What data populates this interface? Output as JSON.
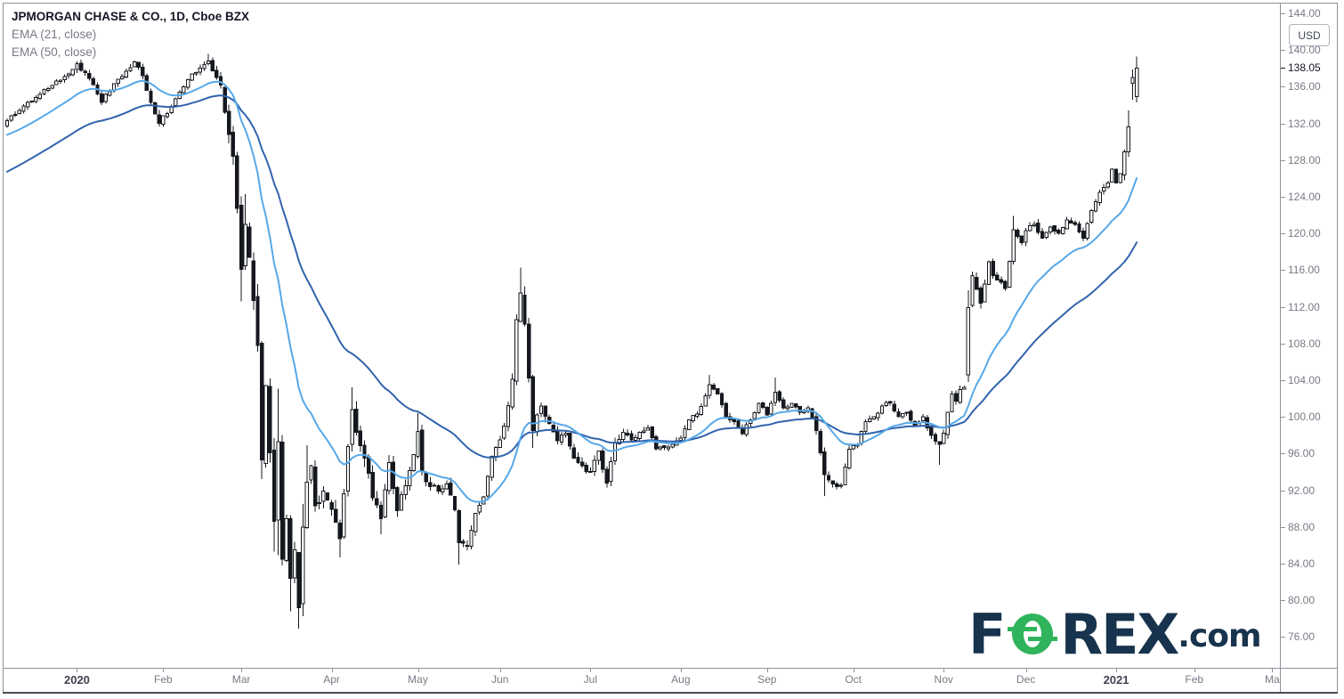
{
  "legend": {
    "title": "JPMORGAN CHASE & CO., 1D, Cboe BZX",
    "indicators": [
      "EMA (21, close)",
      "EMA (50, close)"
    ]
  },
  "price_axis": {
    "currency": "USD",
    "tick_labels": [
      "144.00",
      "140.00",
      "136.00",
      "132.00",
      "128.00",
      "124.00",
      "120.00",
      "116.00",
      "112.00",
      "108.00",
      "104.00",
      "100.00",
      "96.00",
      "92.00",
      "88.00",
      "84.00",
      "80.00",
      "76.00"
    ],
    "last_price": "138.05",
    "text_color": "#787b86",
    "last_price_color": "#131722"
  },
  "time_axis": {
    "labels": [
      {
        "text": "2020",
        "day": 17,
        "year": true
      },
      {
        "text": "Feb",
        "day": 38,
        "year": false
      },
      {
        "text": "Mar",
        "day": 57,
        "year": false
      },
      {
        "text": "Apr",
        "day": 79,
        "year": false
      },
      {
        "text": "May",
        "day": 100,
        "year": false
      },
      {
        "text": "Jun",
        "day": 120,
        "year": false
      },
      {
        "text": "Jul",
        "day": 142,
        "year": false
      },
      {
        "text": "Aug",
        "day": 164,
        "year": false
      },
      {
        "text": "Sep",
        "day": 185,
        "year": false
      },
      {
        "text": "Oct",
        "day": 206,
        "year": false
      },
      {
        "text": "Nov",
        "day": 228,
        "year": false
      },
      {
        "text": "Dec",
        "day": 248,
        "year": false
      },
      {
        "text": "2021",
        "day": 270,
        "year": true
      },
      {
        "text": "Feb",
        "day": 289,
        "year": false
      },
      {
        "text": "Ma",
        "day": 308,
        "year": false
      }
    ]
  },
  "watermark": {
    "part_f": "F",
    "part_rex": "REX",
    "part_suffix": ".com",
    "navy": "#17334d",
    "green": "#2fb45c"
  },
  "chart_data": {
    "type": "candlestick",
    "title": "JPMORGAN CHASE & CO., 1D, Cboe BZX",
    "symbol_name": "JPMORGAN CHASE & CO.",
    "interval": "1D",
    "exchange": "Cboe BZX",
    "grid": false,
    "legend_position": "top-left",
    "price_axis_range_visible": [
      72.6,
      145.2
    ],
    "price_tick_step": 4,
    "last_close": 138.05,
    "candle_style": {
      "up_fill": "#ffffff",
      "down_fill": "#15181e",
      "border": "#15181e"
    },
    "emas": [
      {
        "length": 21,
        "source": "close",
        "color": "#56a8e8",
        "seed": 130.6
      },
      {
        "length": 50,
        "source": "close",
        "color": "#3164ad",
        "seed": 126.5
      }
    ],
    "anchor_fields": [
      "day_index",
      "close",
      "volatility",
      "high_override",
      "low_override",
      "open_override"
    ],
    "anchors": [
      [
        0,
        132.3,
        0.9
      ],
      [
        4,
        133.9,
        0.8
      ],
      [
        9,
        135.7,
        0.8
      ],
      [
        14,
        137.1,
        0.8
      ],
      [
        17,
        138.5,
        0.9
      ],
      [
        20,
        136.9,
        0.9
      ],
      [
        23,
        134.3,
        1.0
      ],
      [
        27,
        136.8,
        0.9
      ],
      [
        31,
        138.7,
        0.9
      ],
      [
        33,
        137.2,
        0.9
      ],
      [
        35,
        134.3,
        1.0
      ],
      [
        37,
        132.0,
        1.2
      ],
      [
        39,
        133.1,
        1.0
      ],
      [
        41,
        134.7,
        0.9
      ],
      [
        43,
        136.0,
        0.9
      ],
      [
        45,
        137.4,
        0.9
      ],
      [
        49,
        138.8,
        0.9,
        139.6,
        null,
        null
      ],
      [
        52,
        136.2,
        1.2
      ],
      [
        53,
        133.2,
        2.0
      ],
      [
        55,
        128.4,
        2.4
      ],
      [
        57,
        116.1,
        3.2,
        null,
        112.6,
        null
      ],
      [
        58,
        121.0,
        3.0,
        124.3,
        null,
        null
      ],
      [
        60,
        112.7,
        3.2
      ],
      [
        61,
        107.8,
        3.4
      ],
      [
        62,
        95.3,
        3.8,
        null,
        93.2,
        null
      ],
      [
        63,
        103.4,
        3.6
      ],
      [
        64,
        96.1,
        3.4
      ],
      [
        65,
        88.6,
        3.6,
        null,
        85.3,
        null
      ],
      [
        66,
        97.3,
        3.8,
        103.1,
        84.9,
        null
      ],
      [
        67,
        84.5,
        3.6
      ],
      [
        68,
        88.9,
        3.2
      ],
      [
        69,
        82.4,
        3.2,
        null,
        78.8,
        null
      ],
      [
        70,
        85.5,
        3.0
      ],
      [
        71,
        79.2,
        3.0,
        null,
        76.9,
        null
      ],
      [
        72,
        88.0,
        3.4,
        90.5,
        null,
        null
      ],
      [
        73,
        92.9,
        3.0,
        96.9,
        null,
        null
      ],
      [
        74,
        94.7,
        2.6
      ],
      [
        75,
        90.3,
        2.4
      ],
      [
        77,
        91.9,
        2.2
      ],
      [
        79,
        89.9,
        2.2
      ],
      [
        81,
        86.7,
        2.4,
        null,
        84.7,
        null
      ],
      [
        82,
        91.6,
        2.4
      ],
      [
        84,
        100.8,
        2.6,
        103.2,
        null,
        null
      ],
      [
        85,
        98.3,
        2.4
      ],
      [
        87,
        95.5,
        2.2
      ],
      [
        89,
        91.2,
        2.0
      ],
      [
        91,
        88.9,
        2.0,
        null,
        87.2,
        null
      ],
      [
        93,
        95.0,
        1.9
      ],
      [
        95,
        89.8,
        1.9
      ],
      [
        97,
        92.5,
        1.7
      ],
      [
        99,
        95.9,
        1.6
      ],
      [
        100,
        98.4,
        1.6,
        100.4,
        null,
        null
      ],
      [
        101,
        94.1,
        1.6
      ],
      [
        103,
        92.4,
        1.5
      ],
      [
        105,
        91.9,
        1.4
      ],
      [
        107,
        92.7,
        1.4
      ],
      [
        109,
        89.9,
        1.4
      ],
      [
        110,
        86.3,
        1.5,
        null,
        83.9,
        null
      ],
      [
        112,
        86.0,
        1.5
      ],
      [
        114,
        89.5,
        1.4
      ],
      [
        116,
        91.3,
        1.3
      ],
      [
        118,
        95.7,
        1.4
      ],
      [
        120,
        97.5,
        1.3
      ],
      [
        121,
        99.0,
        1.3
      ],
      [
        123,
        104.1,
        1.6
      ],
      [
        124,
        110.6,
        2.0
      ],
      [
        125,
        113.5,
        2.2,
        116.3,
        null,
        null
      ],
      [
        126,
        110.1,
        2.2
      ],
      [
        128,
        98.5,
        2.6,
        null,
        96.6,
        null
      ],
      [
        130,
        101.2,
        1.8
      ],
      [
        132,
        99.3,
        1.5
      ],
      [
        134,
        97.4,
        1.4
      ],
      [
        136,
        98.2,
        1.3
      ],
      [
        138,
        95.5,
        1.3
      ],
      [
        140,
        94.7,
        1.3
      ],
      [
        142,
        94.0,
        1.3
      ],
      [
        144,
        96.3,
        1.2
      ],
      [
        146,
        92.8,
        1.3
      ],
      [
        148,
        97.2,
        1.2
      ],
      [
        150,
        98.3,
        1.1
      ],
      [
        152,
        97.5,
        1.1
      ],
      [
        154,
        98.3,
        1.0
      ],
      [
        156,
        98.8,
        1.0
      ],
      [
        158,
        96.5,
        1.0
      ],
      [
        161,
        96.7,
        0.9
      ],
      [
        164,
        97.7,
        0.9
      ],
      [
        166,
        99.7,
        0.9
      ],
      [
        168,
        100.3,
        0.9
      ],
      [
        171,
        103.5,
        1.0,
        104.6,
        null,
        null
      ],
      [
        173,
        102.5,
        0.9
      ],
      [
        175,
        100.0,
        0.9
      ],
      [
        177,
        99.5,
        0.9
      ],
      [
        179,
        98.2,
        0.9
      ],
      [
        181,
        99.7,
        0.9
      ],
      [
        183,
        101.5,
        0.9
      ],
      [
        185,
        100.2,
        0.9
      ],
      [
        187,
        102.7,
        1.0,
        104.3,
        null,
        null
      ],
      [
        189,
        101.0,
        1.0
      ],
      [
        191,
        101.5,
        0.9
      ],
      [
        193,
        100.5,
        0.9
      ],
      [
        195,
        101.0,
        0.9
      ],
      [
        197,
        98.5,
        1.0
      ],
      [
        199,
        93.7,
        1.2,
        null,
        91.4,
        null
      ],
      [
        201,
        92.7,
        1.0
      ],
      [
        203,
        92.5,
        1.0
      ],
      [
        205,
        96.5,
        1.0
      ],
      [
        207,
        97.0,
        0.9
      ],
      [
        209,
        99.5,
        0.9
      ],
      [
        211,
        100.0,
        0.9
      ],
      [
        213,
        101.2,
        0.9
      ],
      [
        215,
        101.5,
        1.0
      ],
      [
        217,
        100.0,
        0.9
      ],
      [
        219,
        100.5,
        0.9
      ],
      [
        221,
        99.0,
        0.9
      ],
      [
        223,
        100.0,
        0.9
      ],
      [
        225,
        98.0,
        1.0
      ],
      [
        227,
        97.0,
        1.1,
        null,
        94.8,
        null
      ],
      [
        228,
        98.2,
        1.0
      ],
      [
        229,
        100.5,
        1.1
      ],
      [
        230,
        102.5,
        1.2
      ],
      [
        231,
        101.7,
        1.1
      ],
      [
        232,
        103.0,
        1.1
      ],
      [
        233,
        103.2,
        1.1
      ],
      [
        234,
        111.9,
        2.0,
        113.8,
        null,
        104.6
      ],
      [
        235,
        115.4,
        1.8
      ],
      [
        236,
        113.9,
        1.5
      ],
      [
        237,
        112.4,
        1.4
      ],
      [
        238,
        114.5,
        1.3
      ],
      [
        239,
        116.9,
        1.3
      ],
      [
        240,
        115.4,
        1.2
      ],
      [
        241,
        114.9,
        1.2
      ],
      [
        243,
        114.0,
        1.2
      ],
      [
        245,
        120.4,
        1.4,
        121.9,
        null,
        null
      ],
      [
        247,
        119.0,
        1.1
      ],
      [
        248,
        120.3,
        1.1
      ],
      [
        250,
        121.0,
        1.1
      ],
      [
        252,
        119.5,
        1.0
      ],
      [
        254,
        120.7,
        1.0
      ],
      [
        256,
        120.0,
        1.0
      ],
      [
        258,
        121.5,
        1.0
      ],
      [
        260,
        121.0,
        1.0
      ],
      [
        262,
        119.5,
        1.0
      ],
      [
        264,
        122.5,
        1.0
      ],
      [
        266,
        124.5,
        1.0
      ],
      [
        268,
        125.5,
        1.0
      ],
      [
        269,
        127.0,
        1.0
      ],
      [
        270,
        125.5,
        1.1
      ],
      [
        271,
        126.5,
        1.1
      ],
      [
        272,
        128.9,
        1.3
      ],
      [
        273,
        131.6,
        1.4,
        133.4,
        null,
        null
      ],
      [
        274,
        137.0,
        1.2,
        137.9,
        134.6,
        136.4
      ],
      [
        275,
        138.05,
        1.2,
        139.3,
        134.3,
        134.9
      ]
    ]
  }
}
